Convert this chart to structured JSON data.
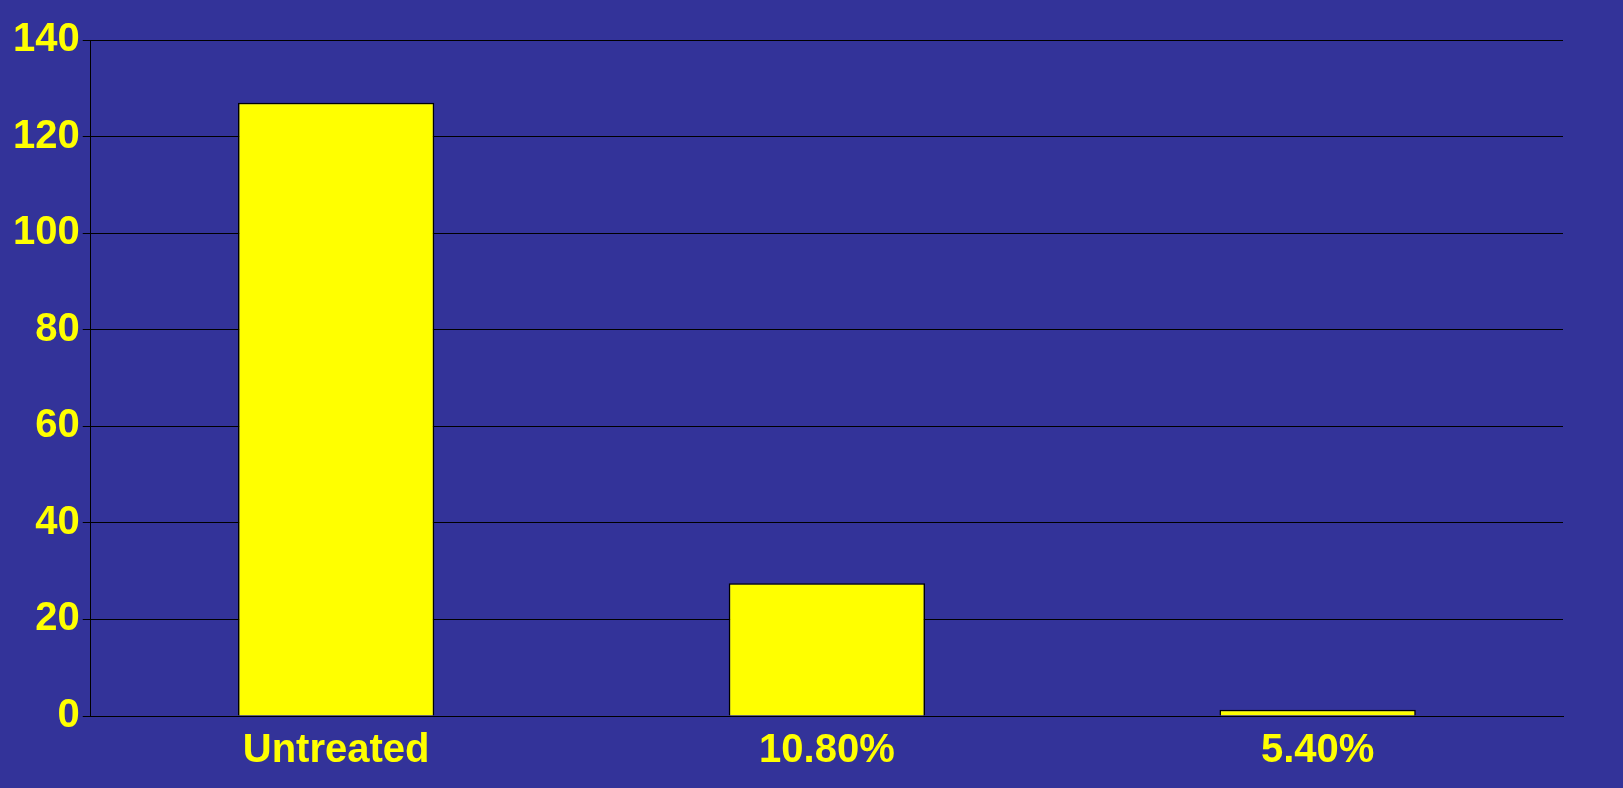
{
  "chart_data": {
    "type": "bar",
    "categories": [
      "Untreated",
      "10.80%",
      "5.40%"
    ],
    "values": [
      127,
      27.5,
      1.3
    ],
    "color": "#ffff00",
    "ylim": [
      0,
      140
    ],
    "yticks": [
      0,
      20,
      40,
      60,
      80,
      100,
      120,
      140
    ],
    "grid": "y"
  }
}
